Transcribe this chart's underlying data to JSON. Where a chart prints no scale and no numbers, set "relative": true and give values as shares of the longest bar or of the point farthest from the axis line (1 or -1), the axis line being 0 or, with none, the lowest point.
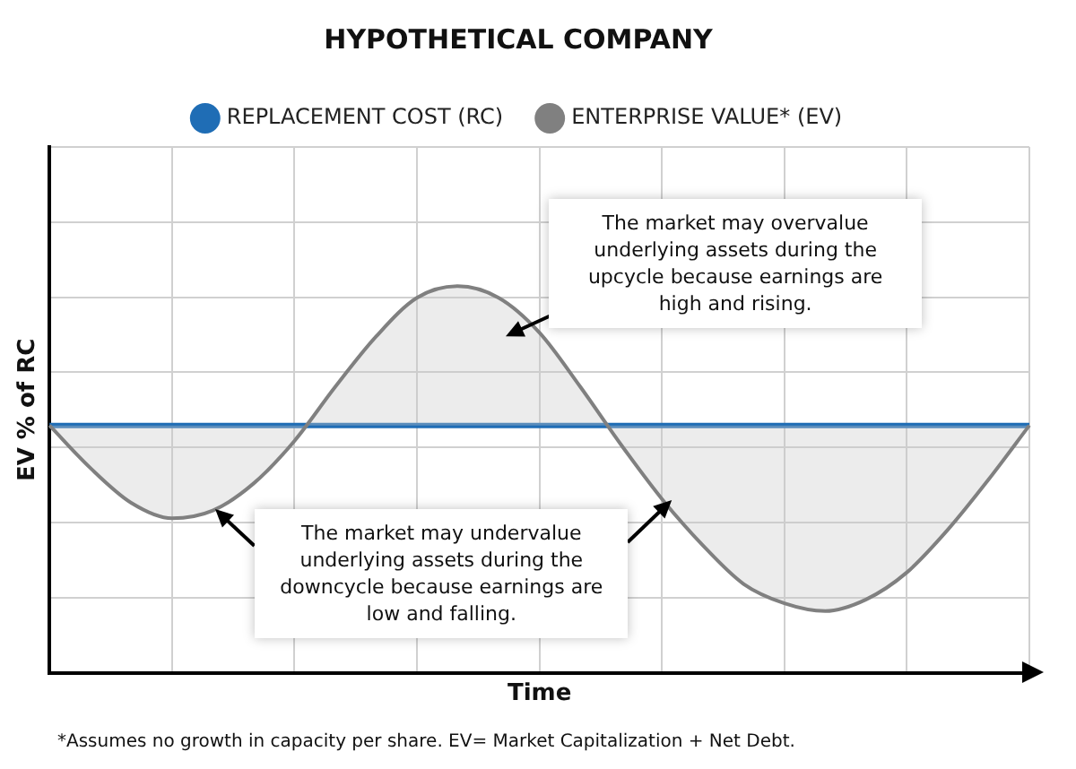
{
  "chart_data": {
    "type": "line",
    "title": "HYPOTHETICAL COMPANY",
    "xlabel": "Time",
    "ylabel": "EV % of RC",
    "relative": true,
    "grid": true,
    "legend": "top",
    "tick_labels": false,
    "marker": "none",
    "categories": [
      null,
      null,
      null,
      null,
      null,
      null,
      null,
      null,
      null,
      null,
      null,
      null,
      null,
      null,
      null,
      null,
      null,
      null,
      null,
      null,
      null,
      null,
      null,
      null,
      null
    ],
    "series": [
      {
        "name": "REPLACEMENT COST (RC)",
        "color": "#1f6db5",
        "type": "line",
        "values": [
          0.64,
          0.64,
          0.64,
          0.64,
          0.64,
          0.64,
          0.64,
          0.64,
          0.64,
          0.64,
          0.64,
          0.64,
          0.64,
          0.64,
          0.64,
          0.64,
          0.64,
          0.64,
          0.64,
          0.64,
          0.64,
          0.64,
          0.64,
          0.64,
          0.64
        ]
      },
      {
        "name": "ENTERPRISE VALUE* (EV)",
        "color": "#808080",
        "type": "area",
        "values": [
          0.64,
          0.53,
          0.44,
          0.4,
          0.42,
          0.49,
          0.6,
          0.74,
          0.87,
          0.97,
          1.0,
          0.97,
          0.88,
          0.74,
          0.59,
          0.45,
          0.33,
          0.23,
          0.18,
          0.16,
          0.19,
          0.26,
          0.37,
          0.5,
          0.64
        ]
      }
    ],
    "annotations": [
      "The market may overvalue underlying assets during the upcycle because earnings are high and rising.",
      "The market may undervalue underlying assets during the downcycle because earnings are low and falling.",
      "*Assumes no growth in capacity per share. EV= Market Capitalization + Net Debt."
    ]
  }
}
